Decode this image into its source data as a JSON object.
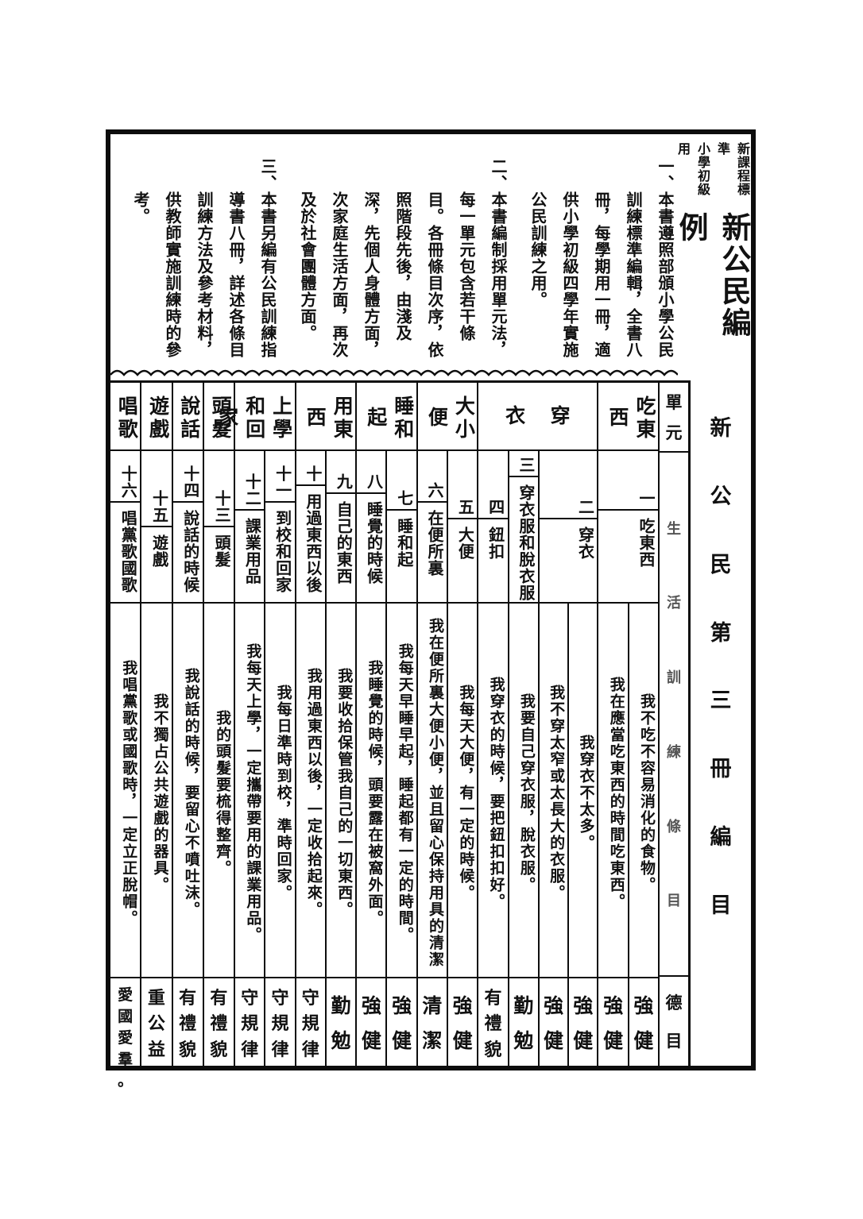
{
  "header": {
    "series_line1": "新課程標準",
    "series_line2": "小學初級用",
    "title": "新公民編例"
  },
  "intro_paragraphs": [
    {
      "num": "一、",
      "text": "本書遵照部頒小學公民訓練標準編輯，全書八冊，每學期用一冊，適供小學初級四學年實施公民訓練之用。"
    },
    {
      "num": "二、",
      "text": "本書編制採用單元法，每一單元包含若干條目。各冊條目次序，依照階段先後，由淺及深，先個人身體方面，次家庭生活方面，再次及於社會團體方面。"
    },
    {
      "num": "三、",
      "text": "本書另編有公民訓練指導書八冊，詳述各條目訓練方法及參考材料，供教師實施訓練時的參考。"
    }
  ],
  "section_caption": "新公民第三冊編目",
  "table": {
    "header": {
      "unit": "單元",
      "items": "生活訓練條目",
      "virtue": "德目"
    },
    "units": [
      {
        "name": "吃東西",
        "items": [
          {
            "num": "一",
            "name": "吃東西",
            "entries": [
              {
                "text": "我不吃不容易消化的食物。",
                "virtue": "強健"
              },
              {
                "text": "我在應當吃東西的時間吃東西。",
                "virtue": "強健"
              }
            ]
          }
        ]
      },
      {
        "name": "穿衣",
        "items": [
          {
            "num": "二",
            "name": "穿衣",
            "entries": [
              {
                "text": "我穿衣不太多。",
                "virtue": "強健"
              },
              {
                "text": "我不穿太窄或太長大的衣服。",
                "virtue": "強健"
              }
            ]
          },
          {
            "num": "三",
            "name": "穿衣服和脫衣服",
            "entries": [
              {
                "text": "我要自己穿衣服，脫衣服。",
                "virtue": "勤勉"
              }
            ]
          },
          {
            "num": "四",
            "name": "鈕扣",
            "entries": [
              {
                "text": "我穿衣的時候，要把鈕扣扣好。",
                "virtue": "有禮貌"
              }
            ]
          }
        ]
      },
      {
        "name": "大小便",
        "items": [
          {
            "num": "五",
            "name": "大便",
            "entries": [
              {
                "text": "我每天大便，有一定的時候。",
                "virtue": "強健"
              }
            ]
          },
          {
            "num": "六",
            "name": "在便所裏",
            "entries": [
              {
                "text": "我在便所裏大便小便，並且留心保持用具的清潔",
                "virtue": "清潔"
              }
            ]
          }
        ]
      },
      {
        "name": "睡和起",
        "items": [
          {
            "num": "七",
            "name": "睡和起",
            "entries": [
              {
                "text": "我每天早睡早起，睡起都有一定的時間。",
                "virtue": "強健"
              }
            ]
          },
          {
            "num": "八",
            "name": "睡覺的時候",
            "entries": [
              {
                "text": "我睡覺的時候，頭要露在被窩外面。",
                "virtue": "強健"
              }
            ]
          }
        ]
      },
      {
        "name": "用東西",
        "items": [
          {
            "num": "九",
            "name": "自己的東西",
            "entries": [
              {
                "text": "我要收拾保管我自己的一切東西。",
                "virtue": "勤勉"
              }
            ]
          },
          {
            "num": "十",
            "name": "用過東西以後",
            "entries": [
              {
                "text": "我用過東西以後，一定收拾起來。",
                "virtue": "守規律"
              }
            ]
          }
        ]
      },
      {
        "name": "上學和回家",
        "items": [
          {
            "num": "十一",
            "name": "到校和回家",
            "entries": [
              {
                "text": "我每日準時到校，準時回家。",
                "virtue": "守規律"
              }
            ]
          },
          {
            "num": "十二",
            "name": "課業用品",
            "entries": [
              {
                "text": "我每天上學，一定攜帶要用的課業用品。",
                "virtue": "守規律"
              }
            ]
          }
        ]
      },
      {
        "name": "頭髮",
        "items": [
          {
            "num": "十三",
            "name": "頭髮",
            "entries": [
              {
                "text": "我的頭髮要梳得整齊。",
                "virtue": "有禮貌"
              }
            ]
          }
        ]
      },
      {
        "name": "說話",
        "items": [
          {
            "num": "十四",
            "name": "說話的時候",
            "entries": [
              {
                "text": "我說話的時候，要留心不噴吐沫。",
                "virtue": "有禮貌"
              }
            ]
          }
        ]
      },
      {
        "name": "遊戲",
        "items": [
          {
            "num": "十五",
            "name": "遊戲",
            "entries": [
              {
                "text": "我不獨占公共遊戲的器具。",
                "virtue": "重公益"
              }
            ]
          }
        ]
      },
      {
        "name": "唱歌",
        "items": [
          {
            "num": "十六",
            "name": "唱黨歌國歌",
            "entries": [
              {
                "text": "我唱黨歌或國歌時，一定立正脫帽。",
                "virtue": "愛國愛羣。"
              }
            ]
          }
        ]
      }
    ]
  }
}
